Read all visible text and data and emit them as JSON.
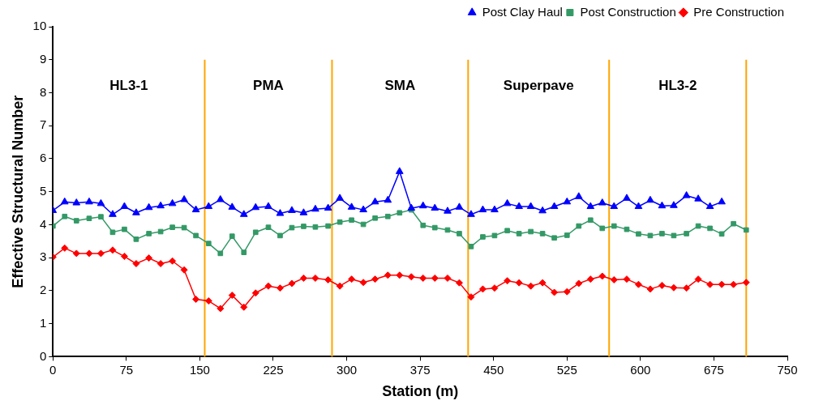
{
  "chart_data": {
    "type": "line",
    "xlabel": "Station (m)",
    "ylabel": "Effective Structural Number",
    "x": [
      0,
      12,
      24,
      37,
      49,
      61,
      73,
      85,
      98,
      110,
      122,
      134,
      146,
      159,
      171,
      183,
      195,
      207,
      220,
      232,
      244,
      256,
      268,
      281,
      293,
      305,
      317,
      329,
      342,
      354,
      366,
      378,
      390,
      403,
      415,
      427,
      439,
      451,
      464,
      476,
      488,
      500,
      512,
      525,
      537,
      549,
      561,
      573,
      586,
      598,
      610,
      622,
      634,
      647,
      659,
      671,
      683,
      695,
      708
    ],
    "series": [
      {
        "name": "Pre Construction",
        "color": "#ff0000",
        "marker": "diamond",
        "values": [
          3.02,
          3.29,
          3.13,
          3.13,
          3.13,
          3.23,
          3.04,
          2.82,
          2.99,
          2.82,
          2.9,
          2.63,
          1.74,
          1.69,
          1.46,
          1.86,
          1.5,
          1.93,
          2.14,
          2.08,
          2.22,
          2.38,
          2.38,
          2.33,
          2.14,
          2.35,
          2.25,
          2.35,
          2.47,
          2.47,
          2.42,
          2.38,
          2.38,
          2.38,
          2.24,
          1.81,
          2.05,
          2.08,
          2.3,
          2.24,
          2.14,
          2.24,
          1.95,
          1.97,
          2.22,
          2.35,
          2.44,
          2.33,
          2.35,
          2.19,
          2.05,
          2.16,
          2.09,
          2.08,
          2.35,
          2.19,
          2.19,
          2.19,
          2.25
        ]
      },
      {
        "name": "Post Construction",
        "color": "#339966",
        "marker": "square",
        "values": [
          3.96,
          4.25,
          4.12,
          4.19,
          4.24,
          3.77,
          3.86,
          3.56,
          3.73,
          3.79,
          3.92,
          3.91,
          3.67,
          3.43,
          3.13,
          3.65,
          3.16,
          3.77,
          3.92,
          3.67,
          3.91,
          3.95,
          3.93,
          3.96,
          4.08,
          4.14,
          4.01,
          4.2,
          4.25,
          4.36,
          4.45,
          3.98,
          3.91,
          3.84,
          3.73,
          3.34,
          3.63,
          3.67,
          3.82,
          3.73,
          3.79,
          3.73,
          3.6,
          3.68,
          3.96,
          4.14,
          3.89,
          3.96,
          3.86,
          3.72,
          3.67,
          3.73,
          3.67,
          3.73,
          3.96,
          3.89,
          3.72,
          4.03,
          3.84
        ]
      },
      {
        "name": "Post Clay Haul",
        "color": "#0000ff",
        "marker": "triangle",
        "values": [
          4.43,
          4.69,
          4.66,
          4.69,
          4.64,
          4.31,
          4.55,
          4.36,
          4.52,
          4.57,
          4.64,
          4.76,
          4.45,
          4.55,
          4.76,
          4.53,
          4.31,
          4.52,
          4.55,
          4.34,
          4.43,
          4.36,
          4.47,
          4.5,
          4.8,
          4.53,
          4.45,
          4.69,
          4.74,
          5.61,
          4.5,
          4.57,
          4.5,
          4.41,
          4.53,
          4.31,
          4.45,
          4.45,
          4.64,
          4.55,
          4.55,
          4.42,
          4.55,
          4.69,
          4.85,
          4.55,
          4.66,
          4.55,
          4.8,
          4.55,
          4.74,
          4.57,
          4.58,
          4.88,
          4.78,
          4.55,
          4.69,
          null,
          null
        ]
      }
    ],
    "xlim": [
      0,
      750
    ],
    "xticks": [
      0,
      75,
      150,
      225,
      300,
      375,
      450,
      525,
      600,
      675,
      750
    ],
    "ylim": [
      0,
      10
    ],
    "yticks": [
      0,
      1,
      2,
      3,
      4,
      5,
      6,
      7,
      8,
      9,
      10
    ],
    "ref_lines": [
      {
        "axis": "x",
        "value": 155,
        "color": "#ffa500"
      },
      {
        "axis": "x",
        "value": 285,
        "color": "#ffa500"
      },
      {
        "axis": "x",
        "value": 424,
        "color": "#ffa500"
      },
      {
        "axis": "x",
        "value": 568,
        "color": "#ffa500"
      },
      {
        "axis": "x",
        "value": 708,
        "color": "#ffa500"
      }
    ],
    "annotations": [
      "HL3-1",
      "PMA",
      "SMA",
      "Superpave",
      "HL3-2"
    ],
    "legend": "top right",
    "grid": false,
    "line_style": "solid"
  }
}
